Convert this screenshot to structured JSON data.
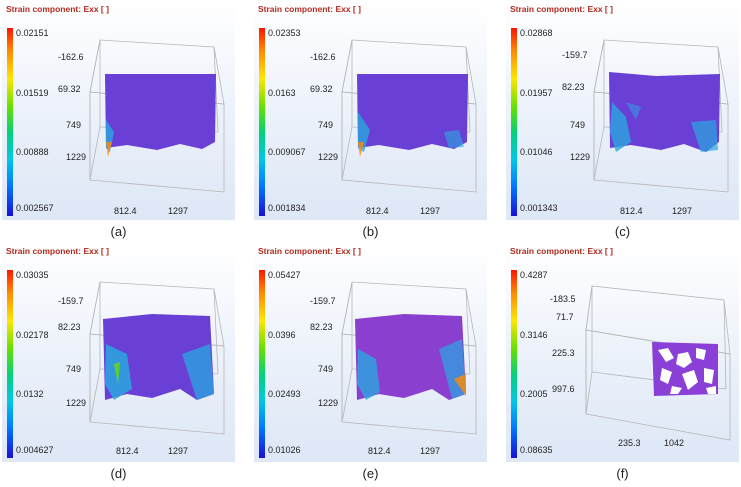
{
  "panels": [
    {
      "title": "Strain component: Exx [ ]",
      "colorbar": [
        "0.02151",
        "0.01519",
        "0.00888",
        "0.002567"
      ],
      "y_ticks": [
        "-162.6",
        "69.32",
        "749",
        "1229"
      ],
      "x_ticks": [
        "812.4",
        "1297"
      ],
      "caption": "(a)"
    },
    {
      "title": "Strain component: Exx [ ]",
      "colorbar": [
        "0.02353",
        "0.0163",
        "0.009067",
        "0.001834"
      ],
      "y_ticks": [
        "-162.6",
        "69.32",
        "749",
        "1229"
      ],
      "x_ticks": [
        "812.4",
        "1297"
      ],
      "caption": "(b)"
    },
    {
      "title": "Strain component: Exx [ ]",
      "colorbar": [
        "0.02868",
        "0.01957",
        "0.01046",
        "0.001343"
      ],
      "y_ticks": [
        "-159.7",
        "82.23",
        "749",
        "1229"
      ],
      "x_ticks": [
        "812.4",
        "1297"
      ],
      "caption": "(c)"
    },
    {
      "title": "Strain component: Exx [ ]",
      "colorbar": [
        "0.03035",
        "0.02178",
        "0.0132",
        "0.004627"
      ],
      "y_ticks": [
        "-159.7",
        "82.23",
        "749",
        "1229"
      ],
      "x_ticks": [
        "812.4",
        "1297"
      ],
      "caption": "(d)"
    },
    {
      "title": "Strain component: Exx [ ]",
      "colorbar": [
        "0.05427",
        "0.0396",
        "0.02493",
        "0.01026"
      ],
      "y_ticks": [
        "-159.7",
        "82.23",
        "749",
        "1229"
      ],
      "x_ticks": [
        "812.4",
        "1297"
      ],
      "caption": "(e)"
    },
    {
      "title": "Strain component: Exx [ ]",
      "colorbar": [
        "0.4287",
        "0.3146",
        "0.2005",
        "0.08635"
      ],
      "y_ticks": [
        "-183.5",
        "71.7",
        "225.3",
        "997.6"
      ],
      "x_ticks": [
        "235.3",
        "1042"
      ],
      "caption": "(f)"
    }
  ],
  "colors": {
    "title": "#b22a1f",
    "surface": "#6a3fd6",
    "low_strain": "#2aa8e0",
    "high_strain": "#ff8a00"
  }
}
